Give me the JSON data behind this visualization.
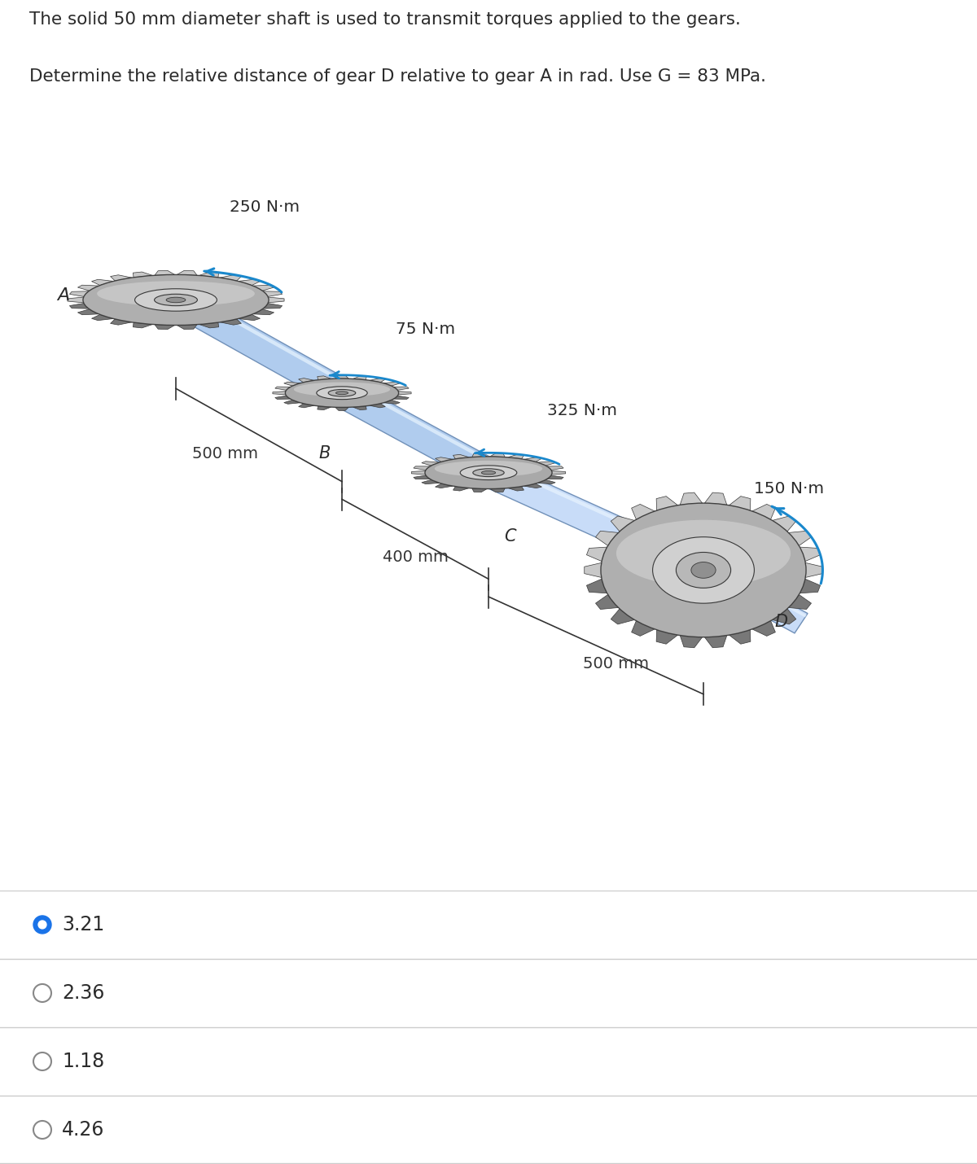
{
  "title_line1": "The solid 50 mm diameter shaft is used to transmit torques applied to the gears.",
  "title_line2": "Determine the relative distance of gear D relative to gear A in rad. Use G = 83 MPa.",
  "torques": [
    "250 N·m",
    "75 N·m",
    "325 N·m",
    "150 N·m"
  ],
  "gear_labels": [
    "A",
    "B",
    "C",
    "D"
  ],
  "distances": [
    "500 mm",
    "400 mm",
    "500 mm"
  ],
  "choices": [
    "3.21",
    "2.36",
    "1.18",
    "4.26"
  ],
  "correct_index": 0,
  "bg_color": "#ffffff",
  "text_color": "#2b2b2b",
  "selected_color": "#1a73e8",
  "unselected_color": "#888888",
  "divider_color": "#cccccc",
  "title_fontsize": 15.5,
  "choice_fontsize": 17
}
